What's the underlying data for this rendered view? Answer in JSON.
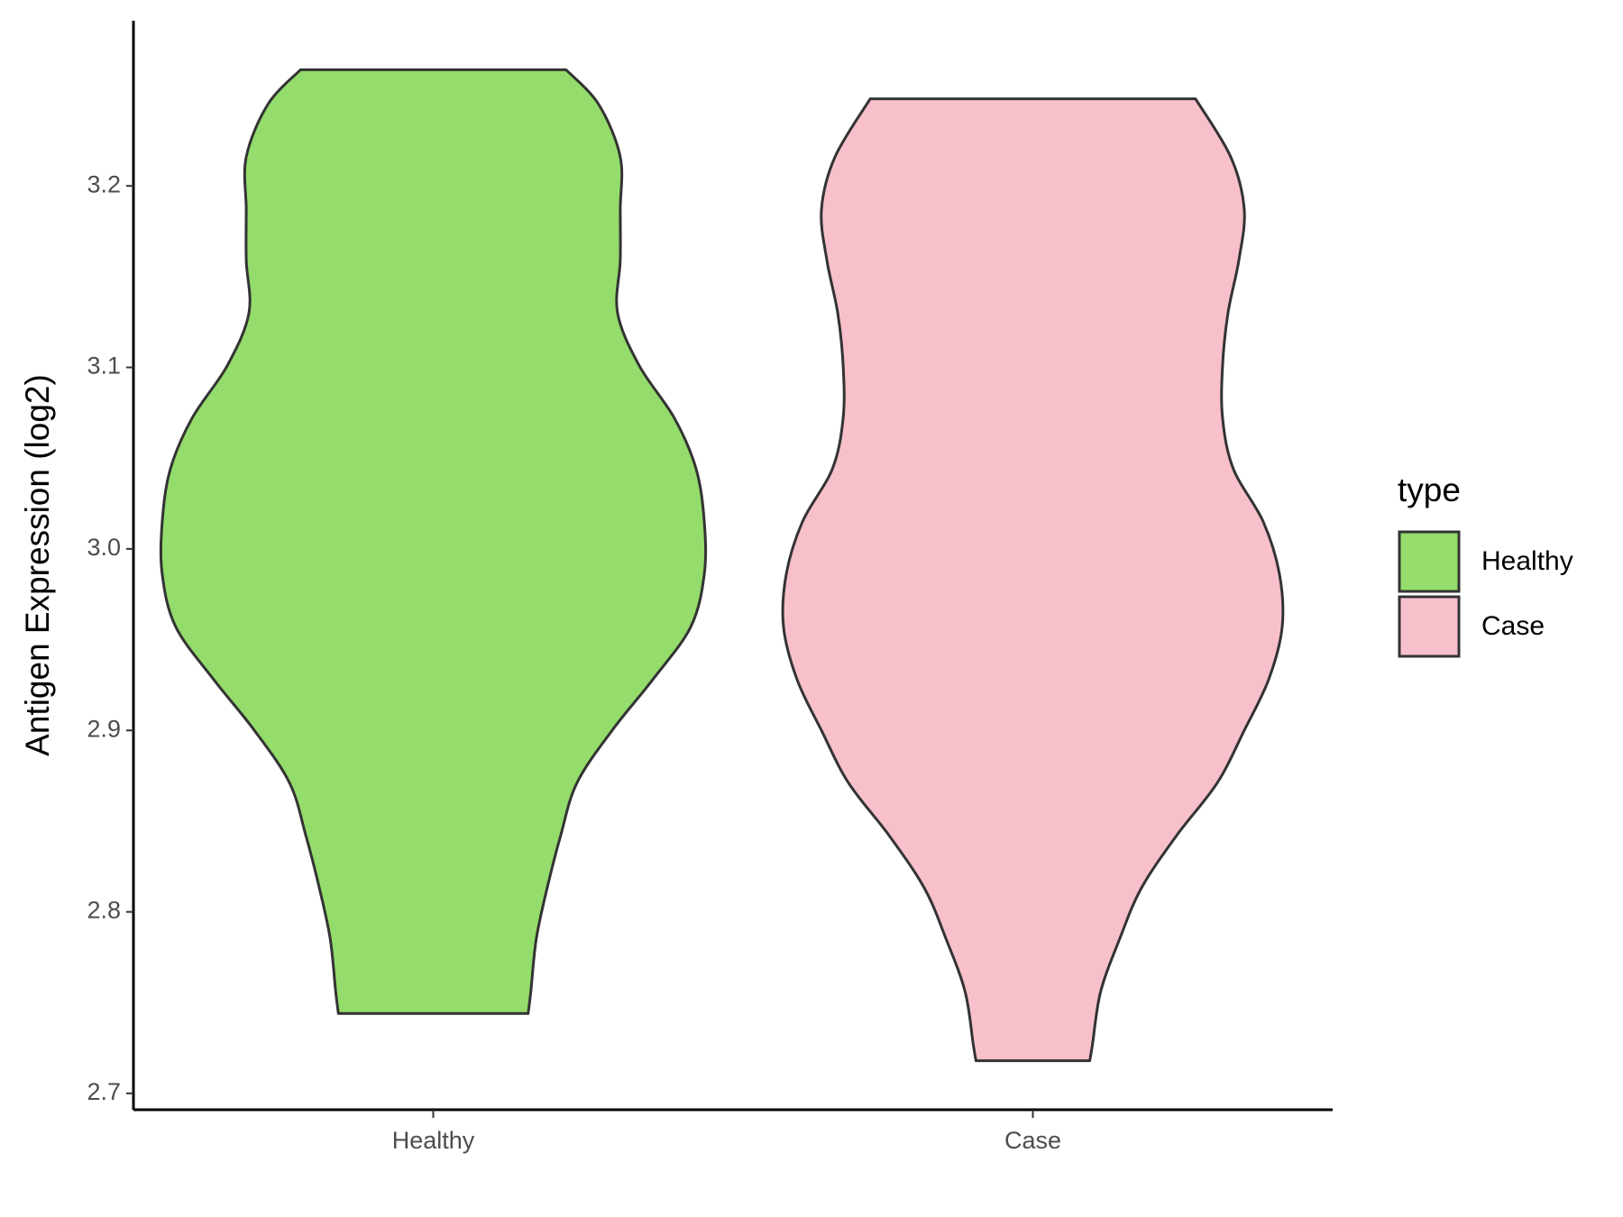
{
  "chart_data": {
    "type": "violin",
    "y_label": "Antigen Expression (log2)",
    "categories": [
      "Healthy",
      "Case"
    ],
    "legend_title": "type",
    "legend": "right",
    "ylim": [
      2.691,
      3.291
    ],
    "yticks": [
      2.7,
      2.8,
      2.9,
      {
        "value": 3.0,
        "label": "3.0"
      },
      3.1,
      3.2
    ],
    "series": [
      {
        "name": "Healthy",
        "color": "#94dc6b",
        "y": [
          3.264,
          3.245,
          3.216,
          3.187,
          3.159,
          3.13,
          3.101,
          3.072,
          3.044,
          3.015,
          2.986,
          2.957,
          2.928,
          2.9,
          2.871,
          2.842,
          2.813,
          2.785,
          2.756,
          2.744
        ],
        "density": [
          0.49,
          0.61,
          0.69,
          0.69,
          0.69,
          0.68,
          0.76,
          0.89,
          0.97,
          1.0,
          1.0,
          0.95,
          0.81,
          0.66,
          0.53,
          0.47,
          0.42,
          0.38,
          0.36,
          0.35
        ]
      },
      {
        "name": "Case",
        "color": "#f7c0cb",
        "y": [
          3.248,
          3.216,
          3.187,
          3.159,
          3.13,
          3.101,
          3.072,
          3.044,
          3.015,
          2.986,
          2.957,
          2.928,
          2.9,
          2.871,
          2.842,
          2.813,
          2.785,
          2.756,
          2.727,
          2.718
        ],
        "density": [
          0.6,
          0.73,
          0.78,
          0.76,
          0.72,
          0.7,
          0.7,
          0.74,
          0.85,
          0.91,
          0.92,
          0.87,
          0.78,
          0.68,
          0.53,
          0.4,
          0.32,
          0.25,
          0.22,
          0.21
        ]
      }
    ]
  }
}
